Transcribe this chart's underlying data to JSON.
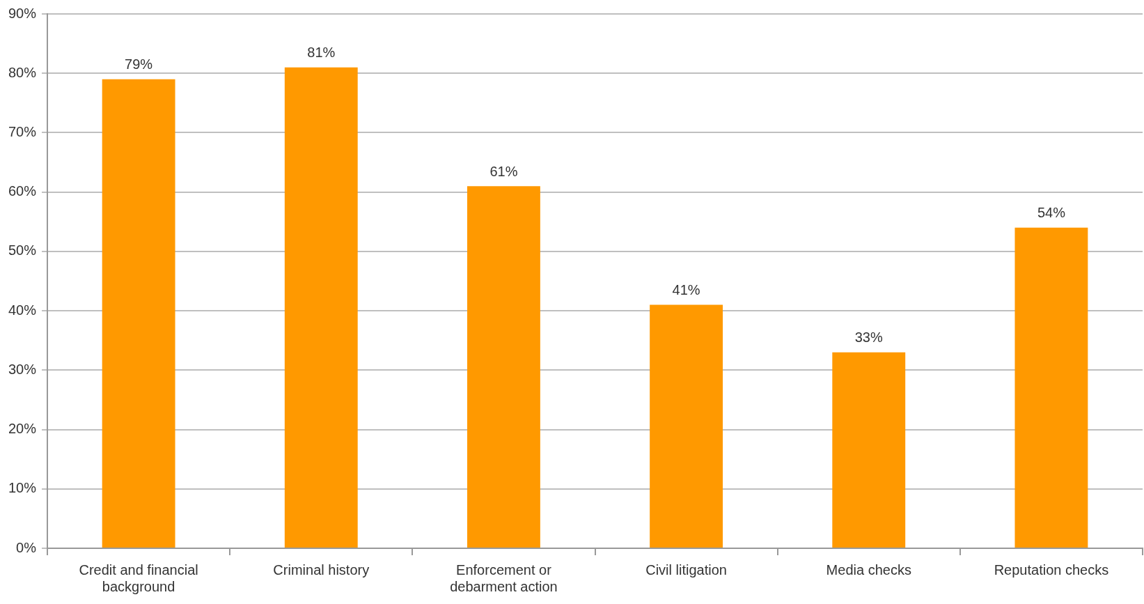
{
  "chart_data": {
    "type": "bar",
    "categories": [
      "Credit and financial background",
      "Criminal history",
      "Enforcement or debarment action",
      "Civil litigation",
      "Media checks",
      "Reputation checks"
    ],
    "values": [
      79,
      81,
      61,
      41,
      33,
      54
    ],
    "value_labels": [
      "79%",
      "81%",
      "61%",
      "41%",
      "33%",
      "54%"
    ],
    "color": "#ff9900",
    "ylim": [
      0,
      90
    ],
    "yticks": [
      {
        "value": 0,
        "label": "0%"
      },
      {
        "value": 10,
        "label": "10%"
      },
      {
        "value": 20,
        "label": "20%"
      },
      {
        "value": 30,
        "label": "30%"
      },
      {
        "value": 40,
        "label": "40%"
      },
      {
        "value": 50,
        "label": "50%"
      },
      {
        "value": 60,
        "label": "60%"
      },
      {
        "value": 70,
        "label": "70%"
      },
      {
        "value": 80,
        "label": "80%"
      },
      {
        "value": 90,
        "label": "90%"
      }
    ],
    "grid": "y",
    "legend": false
  }
}
